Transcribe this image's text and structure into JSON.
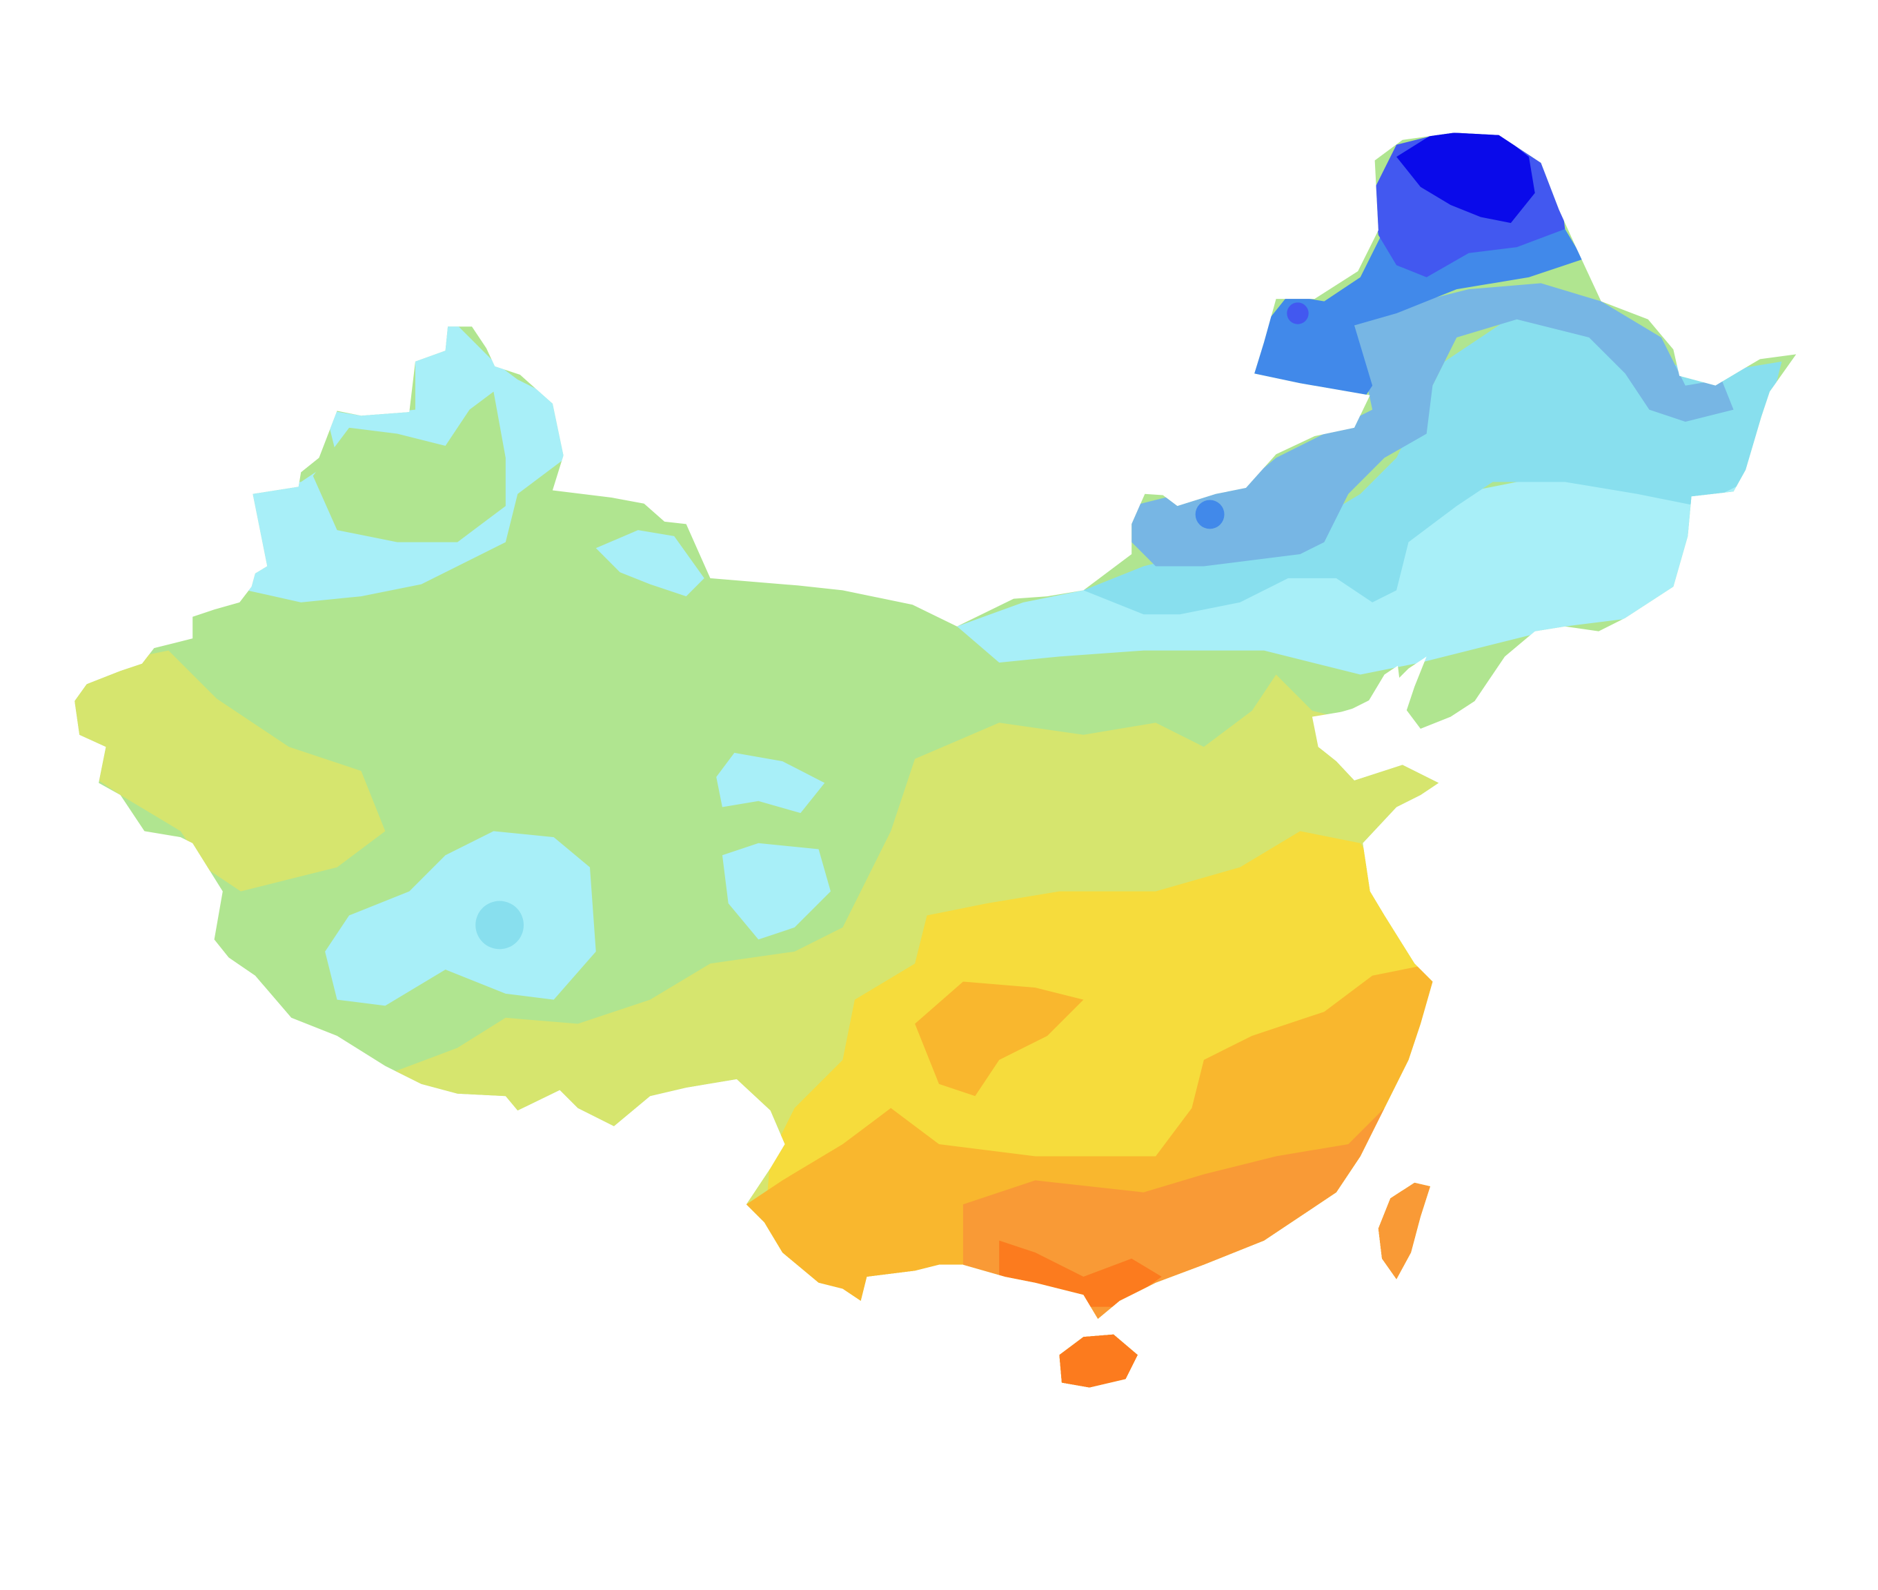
{
  "map": {
    "subject": "China",
    "kind": "choropleth / climate zone map",
    "legend": null,
    "bands": [
      {
        "id": "b1",
        "color": "#0a0aea"
      },
      {
        "id": "b2",
        "color": "#4258f0"
      },
      {
        "id": "b3",
        "color": "#4189ea"
      },
      {
        "id": "b4",
        "color": "#77b6e4"
      },
      {
        "id": "b5",
        "color": "#88dfee"
      },
      {
        "id": "b6",
        "color": "#a8eff8"
      },
      {
        "id": "b7",
        "color": "#b0e590"
      },
      {
        "id": "b8",
        "color": "#d6e56e"
      },
      {
        "id": "b9",
        "color": "#f6dc3c"
      },
      {
        "id": "b10",
        "color": "#f9b72e"
      },
      {
        "id": "b11",
        "color": "#f99a36"
      },
      {
        "id": "b12",
        "color": "#fc7b1e"
      }
    ]
  }
}
